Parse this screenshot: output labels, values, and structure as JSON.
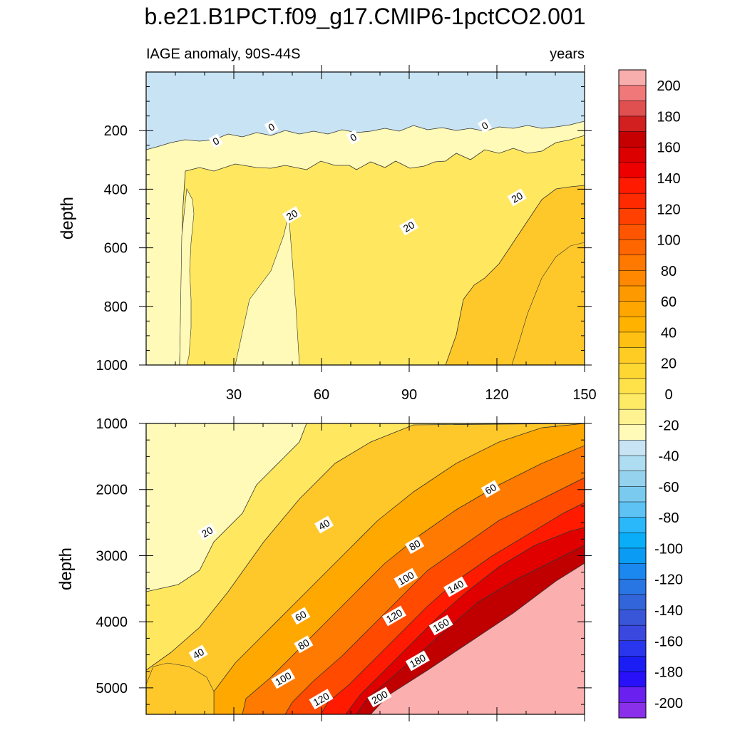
{
  "chart_data": [
    {
      "type": "contour",
      "panel": "upper",
      "title": "b.e21.B1PCT.f09_g17.CMIP6-1pctCO2.001",
      "left_string": "IAGE anomaly, 90S-44S",
      "right_string": "years",
      "xlabel": "",
      "ylabel": "depth",
      "xlim": [
        0,
        150
      ],
      "ylim": [
        1000,
        0
      ],
      "x_ticks": [
        30,
        60,
        90,
        120,
        150
      ],
      "y_ticks": [
        200,
        400,
        600,
        800,
        1000
      ],
      "contour_labels": [
        {
          "text": "0",
          "x": 24,
          "y": 238
        },
        {
          "text": "0",
          "x": 43,
          "y": 190
        },
        {
          "text": "0",
          "x": 71,
          "y": 225
        },
        {
          "text": "0",
          "x": 116,
          "y": 185
        },
        {
          "text": "20",
          "x": 50,
          "y": 490
        },
        {
          "text": "20",
          "x": 90,
          "y": 530
        },
        {
          "text": "20",
          "x": 127,
          "y": 430
        }
      ]
    },
    {
      "type": "contour",
      "panel": "lower",
      "xlabel": "",
      "ylabel": "depth",
      "xlim": [
        0,
        150
      ],
      "ylim": [
        5400,
        1000
      ],
      "y_ticks": [
        1000,
        2000,
        3000,
        4000,
        5000
      ],
      "contour_labels": [
        {
          "text": "20",
          "x": 21,
          "y": 2650
        },
        {
          "text": "40",
          "x": 61,
          "y": 2540
        },
        {
          "text": "60",
          "x": 118,
          "y": 2000
        },
        {
          "text": "80",
          "x": 92,
          "y": 2850
        },
        {
          "text": "100",
          "x": 89,
          "y": 3350
        },
        {
          "text": "140",
          "x": 106,
          "y": 3480
        },
        {
          "text": "60",
          "x": 53,
          "y": 3920
        },
        {
          "text": "120",
          "x": 85,
          "y": 3920
        },
        {
          "text": "160",
          "x": 101,
          "y": 4060
        },
        {
          "text": "40",
          "x": 18,
          "y": 4490
        },
        {
          "text": "80",
          "x": 54,
          "y": 4350
        },
        {
          "text": "180",
          "x": 93,
          "y": 4600
        },
        {
          "text": "100",
          "x": 47,
          "y": 4870
        },
        {
          "text": "120",
          "x": 60,
          "y": 5180
        },
        {
          "text": "200",
          "x": 80,
          "y": 5150
        }
      ]
    }
  ],
  "colorbar": {
    "labels": [
      "200",
      "180",
      "160",
      "140",
      "120",
      "100",
      "80",
      "60",
      "40",
      "20",
      "0",
      "-20",
      "-40",
      "-60",
      "-80",
      "-100",
      "-120",
      "-140",
      "-160",
      "-180",
      "-200"
    ],
    "colors": [
      "#f9aeae",
      "#f07878",
      "#e05050",
      "#d21f1f",
      "#c60000",
      "#dd0000",
      "#ee0000",
      "#ff1a00",
      "#ff2a00",
      "#ff4000",
      "#ff5500",
      "#ff6600",
      "#ff7800",
      "#ff8800",
      "#ff9900",
      "#ffa600",
      "#ffb300",
      "#ffc014",
      "#ffcc24",
      "#ffd733",
      "#ffe14a",
      "#ffea66",
      "#fff291",
      "#fffab8",
      "#c8e4f4",
      "#aedcf0",
      "#94d2ee",
      "#7acaf0",
      "#5ec2f4",
      "#2ab8fa",
      "#0aaef8",
      "#0a9cf4",
      "#1a88ee",
      "#2876e4",
      "#3264da",
      "#3a56d8",
      "#3a48e0",
      "#2a36ee",
      "#1a1ef4",
      "#2810f8",
      "#6a20ee",
      "#8a30ea"
    ]
  },
  "colors": {
    "c0_20": "#fffab8",
    "c20_40": "#ffe860",
    "c40_60": "#ffc82a",
    "c60_80": "#ffa800",
    "c80_100": "#ff7a00",
    "c100_120": "#ff4a00",
    "c120_140": "#ff1a00",
    "c140_180": "#e00000",
    "c180_200": "#c00000",
    "cgt200": "#fbafaf",
    "cneg": "#c8e4f4",
    "line": "#333333"
  }
}
